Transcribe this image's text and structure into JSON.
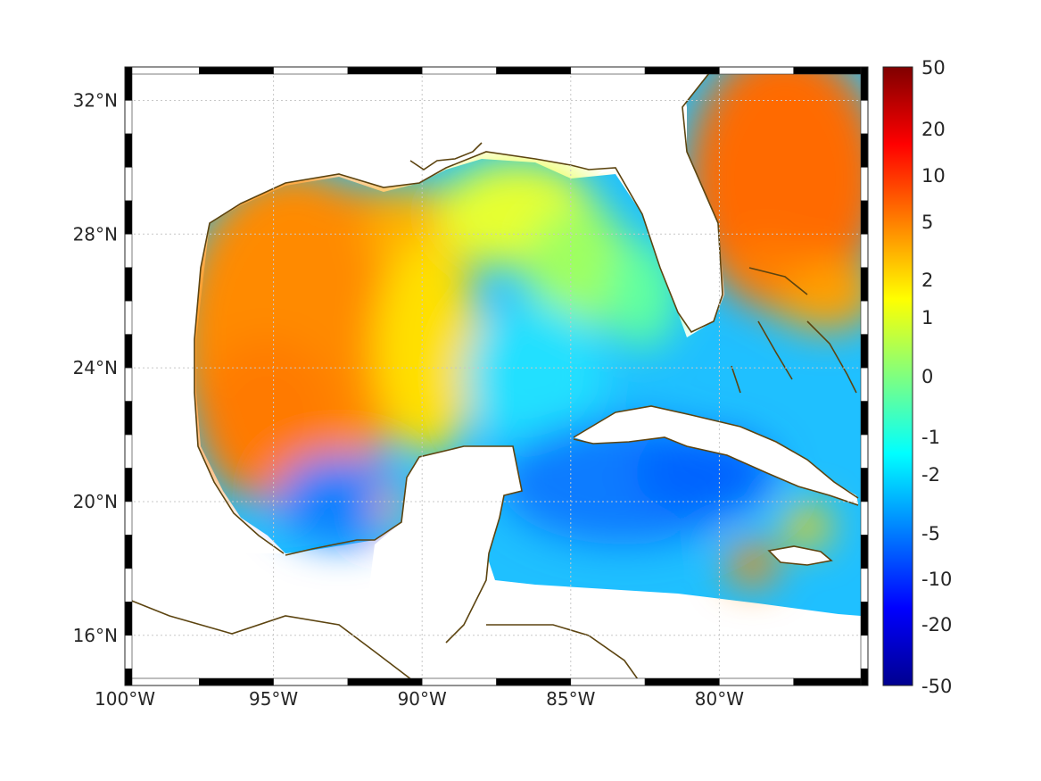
{
  "map": {
    "projection": "equirectangular",
    "extent": {
      "lon_min": -100,
      "lon_max": -75,
      "lat_min": 14.5,
      "lat_max": 33
    },
    "lon_ticks": [
      {
        "value": -100,
        "label": "100°W"
      },
      {
        "value": -95,
        "label": "95°W"
      },
      {
        "value": -90,
        "label": "90°W"
      },
      {
        "value": -85,
        "label": "85°W"
      },
      {
        "value": -80,
        "label": "80°W"
      }
    ],
    "lat_ticks": [
      {
        "value": 32,
        "label": "32°N"
      },
      {
        "value": 28,
        "label": "28°N"
      },
      {
        "value": 24,
        "label": "24°N"
      },
      {
        "value": 20,
        "label": "20°N"
      },
      {
        "value": 16,
        "label": "16°N"
      }
    ],
    "grid": true,
    "frame_style": "alternating black and white bands",
    "coastline_color": "#5c4410",
    "land_color": "#ffffff",
    "colormap": "jet",
    "colorbar": {
      "placement": "right",
      "ticks": [
        "50",
        "20",
        "10",
        "5",
        "2",
        "1",
        "0",
        "-1",
        "-2",
        "-5",
        "-10",
        "-20",
        "-50"
      ]
    },
    "field_pattern": {
      "high": "western Gulf of Mexico and Atlantic east of Florida",
      "moderate": "northern Gulf shelf and eastern Yucatán Channel",
      "low": "southern Gulf, Bay of Campeche and Caribbean Sea south of Cuba"
    }
  }
}
